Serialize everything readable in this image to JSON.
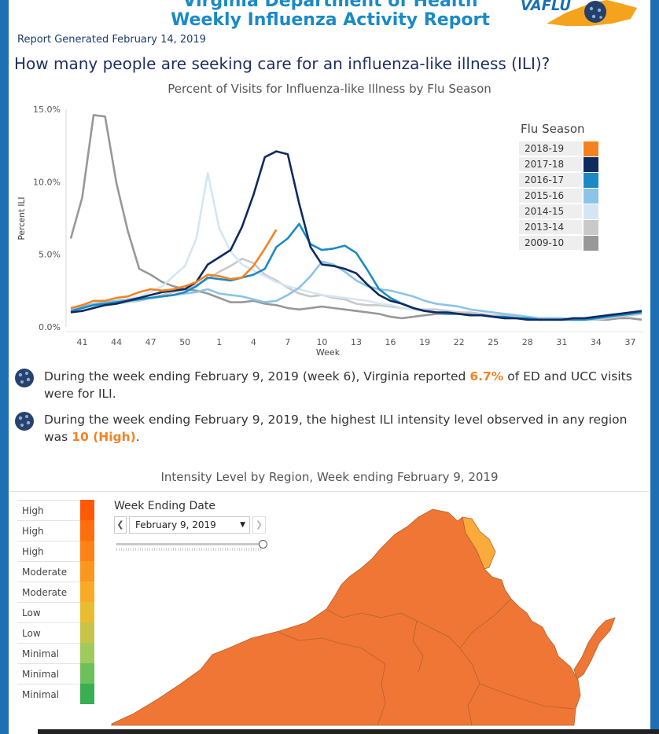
{
  "header": {
    "title_line1": "Virginia Department of Health",
    "title_line2": "Weekly Influenza Activity Report",
    "logo_text": "VAFLU",
    "report_generated": "Report Generated February 14, 2019"
  },
  "question": "How many people are seeking care for an influenza-like illness (ILI)?",
  "chart_data": {
    "type": "line",
    "title": "Percent of Visits for Influenza-like Illness by Flu Season",
    "xlabel": "Week",
    "ylabel": "Percent ILI",
    "x_tick_labels": [
      "41",
      "44",
      "47",
      "50",
      "1",
      "4",
      "7",
      "10",
      "13",
      "16",
      "19",
      "22",
      "25",
      "28",
      "31",
      "34",
      "37"
    ],
    "y_tick_labels": [
      "15.0%",
      "10.0%",
      "5.0%",
      "0.0%"
    ],
    "ylim": [
      0,
      15
    ],
    "x_index_range": [
      0,
      50
    ],
    "x_note": "x is the sequential week index of the flu season, 0 = week 40",
    "legend_title": "Flu Season",
    "series": [
      {
        "name": "2009-10",
        "color": "#989898",
        "x": [
          0,
          1,
          2,
          3,
          4,
          5,
          6,
          7,
          8,
          9,
          10,
          11,
          12,
          13,
          14,
          15,
          16,
          17,
          18,
          19,
          20,
          21,
          22,
          23,
          24,
          25,
          26,
          27,
          28,
          29,
          30,
          31,
          32,
          33,
          34,
          35,
          36,
          37,
          38,
          39,
          40,
          41,
          42,
          43,
          44,
          45,
          46,
          47,
          48,
          49,
          50
        ],
        "values": [
          6.1,
          8.9,
          14.6,
          14.5,
          9.9,
          6.6,
          4.0,
          3.6,
          3.1,
          2.8,
          2.6,
          2.5,
          2.3,
          2.0,
          1.7,
          1.7,
          1.8,
          1.6,
          1.5,
          1.3,
          1.2,
          1.3,
          1.4,
          1.3,
          1.2,
          1.1,
          1.0,
          0.9,
          0.7,
          0.6,
          0.7,
          0.8,
          0.9,
          0.9,
          1.0,
          0.9,
          0.8,
          0.7,
          0.6,
          0.6,
          0.6,
          0.5,
          0.5,
          0.5,
          0.5,
          0.5,
          0.5,
          0.5,
          0.6,
          0.6,
          0.5
        ]
      },
      {
        "name": "2013-14",
        "color": "#c9c9c9",
        "x": [
          0,
          1,
          2,
          3,
          4,
          5,
          6,
          7,
          8,
          9,
          10,
          11,
          12,
          13,
          14,
          15,
          16,
          17,
          18,
          19,
          20,
          21,
          22,
          23,
          24,
          25,
          26,
          27,
          28,
          29,
          30,
          31,
          32,
          33,
          34,
          35,
          36,
          37,
          38,
          39,
          40,
          41,
          42,
          43,
          44,
          45,
          46,
          47,
          48,
          49,
          50
        ],
        "values": [
          1.2,
          1.3,
          1.4,
          1.5,
          1.6,
          1.7,
          1.8,
          2.0,
          2.2,
          2.4,
          2.6,
          2.9,
          3.3,
          3.8,
          4.2,
          4.7,
          4.4,
          3.6,
          3.2,
          2.7,
          2.3,
          2.1,
          2.2,
          2.0,
          1.9,
          1.6,
          1.5,
          1.5,
          1.4,
          1.3,
          1.2,
          1.2,
          1.2,
          1.1,
          1.0,
          1.0,
          0.9,
          0.8,
          0.8,
          0.7,
          0.7,
          0.6,
          0.6,
          0.5,
          0.5,
          0.5,
          0.5,
          0.6,
          0.7,
          0.8,
          0.9
        ]
      },
      {
        "name": "2014-15",
        "color": "#d4e6f4",
        "x": [
          0,
          1,
          2,
          3,
          4,
          5,
          6,
          7,
          8,
          9,
          10,
          11,
          12,
          13,
          14,
          15,
          16,
          17,
          18,
          19,
          20,
          21,
          22,
          23,
          24,
          25,
          26,
          27,
          28,
          29,
          30,
          31,
          32,
          33,
          34,
          35,
          36,
          37,
          38,
          39,
          40,
          41,
          42,
          43,
          44,
          45,
          46,
          47,
          48,
          49,
          50
        ],
        "values": [
          1.1,
          1.2,
          1.4,
          1.5,
          1.7,
          1.9,
          2.1,
          2.4,
          2.8,
          3.5,
          4.2,
          6.1,
          10.6,
          6.8,
          5.2,
          4.3,
          3.9,
          3.5,
          3.1,
          2.8,
          2.6,
          2.4,
          2.2,
          2.1,
          2.0,
          1.9,
          1.8,
          1.6,
          1.5,
          1.3,
          1.2,
          1.1,
          1.0,
          1.0,
          0.9,
          0.8,
          0.8,
          0.7,
          0.7,
          0.6,
          0.6,
          0.6,
          0.5,
          0.5,
          0.5,
          0.6,
          0.7,
          0.8,
          0.9,
          1.0,
          1.1
        ]
      },
      {
        "name": "2015-16",
        "color": "#8cc3e8",
        "x": [
          0,
          1,
          2,
          3,
          4,
          5,
          6,
          7,
          8,
          9,
          10,
          11,
          12,
          13,
          14,
          15,
          16,
          17,
          18,
          19,
          20,
          21,
          22,
          23,
          24,
          25,
          26,
          27,
          28,
          29,
          30,
          31,
          32,
          33,
          34,
          35,
          36,
          37,
          38,
          39,
          40,
          41,
          42,
          43,
          44,
          45,
          46,
          47,
          48,
          49,
          50
        ],
        "values": [
          1.3,
          1.4,
          1.6,
          1.7,
          1.8,
          1.9,
          2.0,
          2.0,
          2.1,
          2.2,
          2.3,
          2.4,
          2.6,
          2.3,
          2.2,
          2.1,
          1.9,
          1.7,
          1.8,
          2.2,
          2.7,
          3.5,
          4.5,
          4.3,
          3.8,
          3.2,
          2.8,
          2.6,
          2.5,
          2.3,
          2.1,
          1.8,
          1.6,
          1.5,
          1.4,
          1.2,
          1.1,
          1.0,
          0.9,
          0.8,
          0.7,
          0.6,
          0.6,
          0.6,
          0.5,
          0.5,
          0.6,
          0.7,
          0.8,
          0.9,
          1.0
        ]
      },
      {
        "name": "2016-17",
        "color": "#1b8ac4",
        "x": [
          0,
          1,
          2,
          3,
          4,
          5,
          6,
          7,
          8,
          9,
          10,
          11,
          12,
          13,
          14,
          15,
          16,
          17,
          18,
          19,
          20,
          21,
          22,
          23,
          24,
          25,
          26,
          27,
          28,
          29,
          30,
          31,
          32,
          33,
          34,
          35,
          36,
          37,
          38,
          39,
          40,
          41,
          42,
          43,
          44,
          45,
          46,
          47,
          48,
          49,
          50
        ],
        "values": [
          1.1,
          1.3,
          1.5,
          1.6,
          1.7,
          1.8,
          1.9,
          2.0,
          2.1,
          2.2,
          2.4,
          2.8,
          3.4,
          3.3,
          3.2,
          3.4,
          3.6,
          4.0,
          5.5,
          6.1,
          7.1,
          5.7,
          5.3,
          5.4,
          5.6,
          5.1,
          3.9,
          2.6,
          2.0,
          1.6,
          1.3,
          1.1,
          1.0,
          0.9,
          0.9,
          0.8,
          0.8,
          0.7,
          0.7,
          0.6,
          0.6,
          0.5,
          0.5,
          0.5,
          0.5,
          0.5,
          0.6,
          0.7,
          0.8,
          0.9,
          1.0
        ]
      },
      {
        "name": "2017-18",
        "color": "#0d2b5e",
        "x": [
          0,
          1,
          2,
          3,
          4,
          5,
          6,
          7,
          8,
          9,
          10,
          11,
          12,
          13,
          14,
          15,
          16,
          17,
          18,
          19,
          20,
          21,
          22,
          23,
          24,
          25,
          26,
          27,
          28,
          29,
          30,
          31,
          32,
          33,
          34,
          35,
          36,
          37,
          38,
          39,
          40,
          41,
          42,
          43,
          44,
          45,
          46,
          47,
          48,
          49,
          50
        ],
        "values": [
          1.0,
          1.1,
          1.3,
          1.5,
          1.6,
          1.8,
          2.0,
          2.2,
          2.4,
          2.5,
          2.6,
          3.1,
          4.3,
          4.8,
          5.3,
          6.9,
          9.1,
          11.7,
          12.1,
          11.9,
          8.5,
          5.5,
          4.3,
          4.2,
          4.0,
          3.7,
          2.9,
          2.2,
          1.8,
          1.6,
          1.3,
          1.1,
          1.0,
          1.0,
          0.9,
          0.8,
          0.8,
          0.7,
          0.6,
          0.6,
          0.5,
          0.5,
          0.5,
          0.5,
          0.6,
          0.6,
          0.7,
          0.8,
          0.9,
          1.0,
          1.1
        ]
      },
      {
        "name": "2018-19",
        "color": "#f58220",
        "x": [
          0,
          1,
          2,
          3,
          4,
          5,
          6,
          7,
          8,
          9,
          10,
          11,
          12,
          13,
          14,
          15,
          16,
          17,
          18
        ],
        "values": [
          1.3,
          1.5,
          1.8,
          1.8,
          2.0,
          2.1,
          2.4,
          2.6,
          2.5,
          2.6,
          2.8,
          3.1,
          3.6,
          3.5,
          3.3,
          3.4,
          4.2,
          5.4,
          6.7
        ]
      }
    ]
  },
  "stats": {
    "stat1_prefix": "During the week ending February 9, 2019 (week 6), Virginia reported ",
    "stat1_value": "6.7%",
    "stat1_suffix": " of ED and UCC visits were for ILI.",
    "stat2_prefix": "During the week ending February 9, 2019, the highest ILI intensity level observed in any region was ",
    "stat2_value": "10 (High)",
    "stat2_suffix": "."
  },
  "map": {
    "title": "Intensity Level by Region, Week ending February 9, 2019",
    "legend": [
      {
        "label": "High",
        "color": "#fd5a07"
      },
      {
        "label": "High",
        "color": "#fd6e0f"
      },
      {
        "label": "High",
        "color": "#fd8217"
      },
      {
        "label": "Moderate",
        "color": "#fb971f"
      },
      {
        "label": "Moderate",
        "color": "#f9ab27"
      },
      {
        "label": "Low",
        "color": "#e9bd32"
      },
      {
        "label": "Low",
        "color": "#c8c44a"
      },
      {
        "label": "Minimal",
        "color": "#9ecb5c"
      },
      {
        "label": "Minimal",
        "color": "#6ec05a"
      },
      {
        "label": "Minimal",
        "color": "#3aae53"
      }
    ],
    "week_ending_label": "Week Ending Date",
    "week_ending_value": "February 9, 2019",
    "region_colors": {
      "main": "#ef7634",
      "northern": "#fbab3b",
      "border": "#b5622e"
    }
  }
}
